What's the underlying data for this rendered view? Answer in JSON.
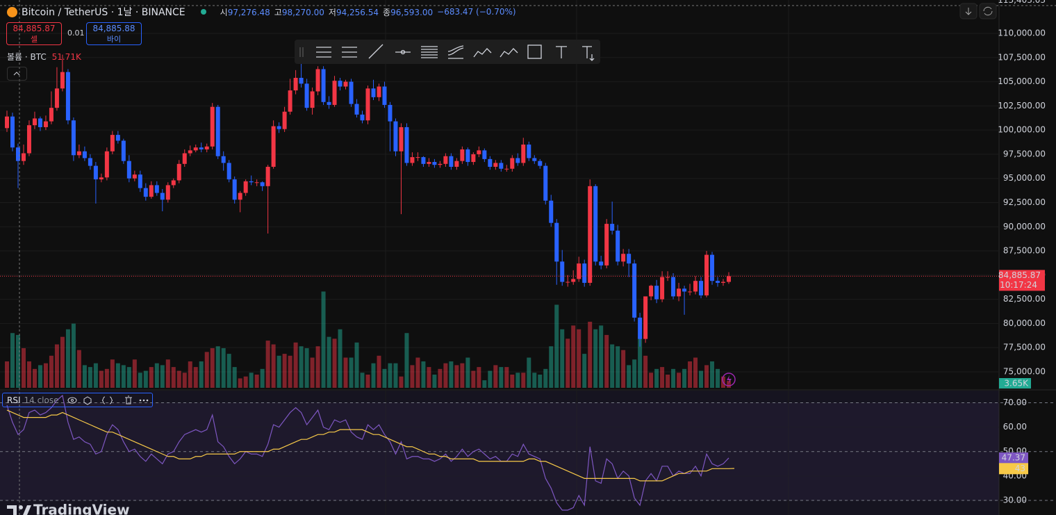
{
  "header": {
    "symbol": "Bitcoin / TetherUS · 1날 · BINANCE",
    "ohlc": [
      {
        "label": "시",
        "value": "97,276.48"
      },
      {
        "label": "고",
        "value": "98,270.00"
      },
      {
        "label": "저",
        "value": "94,256.54"
      },
      {
        "label": "종",
        "value": "96,593.00"
      }
    ],
    "change": "−683.47 (−0.70%)"
  },
  "order": {
    "sell_price": "84,885.87",
    "sell_label": "셀",
    "quantity": "0.01",
    "buy_price": "84,885.88",
    "buy_label": "바이"
  },
  "volume_legend": {
    "label": "볼륨 · BTC",
    "value": "51.71K"
  },
  "logo": "TradingView",
  "chart_data": {
    "type": "candlestick",
    "up_color": "#f23645",
    "down_color": "#2962ff",
    "ylim": [
      73200,
      113450
    ],
    "yticks": [
      {
        "value": 75000,
        "label": "75,000.00"
      },
      {
        "value": 77500,
        "label": "77,500.00"
      },
      {
        "value": 80000,
        "label": "80,000.00"
      },
      {
        "value": 82500,
        "label": "82,500.00"
      },
      {
        "value": 85000,
        "label": "85,000.00"
      },
      {
        "value": 87500,
        "label": "87,500.00"
      },
      {
        "value": 90000,
        "label": "90,000.00"
      },
      {
        "value": 92500,
        "label": "92,500.00"
      },
      {
        "value": 95000,
        "label": "95,000.00"
      },
      {
        "value": 97500,
        "label": "97,500.00"
      },
      {
        "value": 100000,
        "label": "100,000.00"
      },
      {
        "value": 102500,
        "label": "102,500.00"
      },
      {
        "value": 105000,
        "label": "105,000.00"
      },
      {
        "value": 107500,
        "label": "107,500.00"
      },
      {
        "value": 110000,
        "label": "110,000.00"
      }
    ],
    "top_label": {
      "value": 113403.03,
      "label": "113,403.03"
    },
    "last_price": {
      "value": 84885.87,
      "label": "84,885.87",
      "countdown": "10:17:24"
    },
    "open": [
      100200,
      101400,
      98200,
      96800,
      97600,
      100500,
      101200,
      100300,
      100900,
      102300,
      104300,
      106000,
      101000,
      97400,
      97800,
      97100,
      96300,
      94900,
      95100,
      97800,
      99500,
      98900,
      96800,
      95000,
      95400,
      94000,
      93100,
      94300,
      93500,
      92800,
      94300,
      94800,
      96500,
      97600,
      97900,
      98200,
      98000,
      98300,
      102400,
      97300,
      96600,
      94900,
      92800,
      93500,
      94700,
      94600,
      94600,
      94200,
      96200,
      100400,
      100100,
      101900,
      104100,
      105400,
      104800,
      102300,
      104000,
      106300,
      102900,
      102600,
      105100,
      104500,
      105000,
      102700,
      101600,
      101000,
      104300,
      103400,
      104500,
      102600,
      100900,
      97800,
      100300,
      96600,
      97200,
      97200,
      96500,
      96700,
      96400,
      96500,
      97300,
      96200,
      96800,
      98000,
      96700,
      97500,
      97900,
      97000,
      96200,
      96600,
      96000,
      96000,
      97100,
      96600,
      98500,
      97100,
      96800,
      96300,
      92700,
      90400,
      86400,
      84300,
      84300,
      84600,
      86200,
      84200,
      94200,
      86400,
      86000,
      90300,
      89600,
      86400,
      87200,
      86200,
      80600,
      78400,
      82800,
      83900,
      82500,
      84800,
      84800,
      82800,
      83600,
      83300,
      83300,
      84400,
      82900,
      87100,
      84400,
      84200,
      84300
    ],
    "high": [
      102000,
      101800,
      98600,
      98500,
      101000,
      101900,
      101400,
      101500,
      104000,
      106500,
      107800,
      106300,
      101300,
      98500,
      98300,
      97500,
      96700,
      95500,
      98200,
      99900,
      99900,
      99100,
      97400,
      95800,
      95800,
      94500,
      94700,
      94700,
      93900,
      94600,
      95000,
      96900,
      98000,
      98400,
      98500,
      98700,
      98600,
      102800,
      102600,
      97800,
      96900,
      95200,
      93700,
      94900,
      95300,
      94900,
      94700,
      96400,
      101000,
      100800,
      102400,
      105300,
      106200,
      107700,
      105300,
      104400,
      106600,
      106600,
      103500,
      105600,
      105400,
      105200,
      105300,
      103200,
      102000,
      104600,
      105200,
      104800,
      105000,
      102900,
      101200,
      100700,
      100700,
      97700,
      97700,
      97300,
      97100,
      97000,
      96800,
      97600,
      97600,
      97100,
      98300,
      98200,
      97700,
      98300,
      98100,
      97300,
      96900,
      96900,
      96400,
      97400,
      97600,
      99200,
      98800,
      97400,
      97000,
      96600,
      93300,
      90800,
      87600,
      85000,
      85500,
      86900,
      86600,
      94900,
      94400,
      87000,
      90800,
      92600,
      90200,
      87700,
      87700,
      86600,
      81100,
      82400,
      84000,
      84500,
      85400,
      85400,
      85200,
      84200,
      83900,
      84100,
      84900,
      84800,
      87500,
      87400,
      84800,
      84600,
      85300
    ],
    "low": [
      99800,
      97800,
      94000,
      96400,
      97300,
      100100,
      99900,
      100000,
      100600,
      102000,
      104000,
      100600,
      96800,
      97100,
      96800,
      95900,
      92400,
      94600,
      94800,
      97500,
      98600,
      96500,
      94600,
      94700,
      93600,
      92700,
      92900,
      93200,
      91600,
      92500,
      94000,
      94500,
      96200,
      97300,
      97700,
      97700,
      97700,
      98000,
      97000,
      95800,
      94600,
      92400,
      91500,
      93200,
      94300,
      94200,
      93700,
      89300,
      96000,
      99700,
      99800,
      101600,
      103700,
      104400,
      102000,
      101600,
      103600,
      102600,
      102200,
      102400,
      104100,
      104200,
      102400,
      101300,
      100700,
      100600,
      103100,
      103000,
      102300,
      97800,
      97300,
      91300,
      96300,
      96300,
      96800,
      96200,
      96200,
      96100,
      96100,
      96200,
      95900,
      95900,
      96500,
      96300,
      96400,
      97200,
      96700,
      95900,
      95900,
      95700,
      95700,
      95700,
      96300,
      96300,
      96800,
      96500,
      96000,
      92300,
      90000,
      84000,
      83900,
      83800,
      84000,
      84300,
      83800,
      83900,
      86000,
      85600,
      85700,
      89200,
      86000,
      85900,
      84800,
      80200,
      77600,
      78000,
      82400,
      82100,
      82200,
      84400,
      82500,
      82300,
      80900,
      82900,
      83000,
      82600,
      82700,
      84000,
      83800,
      83900,
      84100
    ],
    "close": [
      101400,
      98200,
      96800,
      97600,
      100500,
      101200,
      100300,
      100900,
      102300,
      104300,
      106000,
      101000,
      97400,
      97800,
      97100,
      96300,
      94900,
      95100,
      97800,
      99500,
      98900,
      96800,
      95000,
      95400,
      94000,
      93100,
      94300,
      93500,
      92800,
      94300,
      94800,
      96500,
      97600,
      97900,
      98200,
      98000,
      98300,
      102400,
      97300,
      96600,
      94900,
      92800,
      93500,
      94700,
      94600,
      94600,
      94200,
      96200,
      100400,
      100100,
      101900,
      104100,
      105400,
      104800,
      102300,
      104000,
      106300,
      102900,
      102600,
      105100,
      104500,
      105000,
      102700,
      101600,
      101000,
      104300,
      103400,
      104500,
      102600,
      100900,
      97800,
      100300,
      96600,
      97200,
      97200,
      96500,
      96700,
      96400,
      96500,
      97300,
      96200,
      96800,
      98000,
      96700,
      97500,
      97900,
      97000,
      96200,
      96600,
      96000,
      96000,
      97100,
      96600,
      98500,
      97100,
      96800,
      96300,
      92700,
      90400,
      86400,
      84300,
      84300,
      84600,
      86200,
      84200,
      94200,
      86400,
      86000,
      90300,
      89600,
      86400,
      87200,
      86200,
      80600,
      78400,
      82800,
      83900,
      82500,
      84800,
      84800,
      82800,
      83600,
      83300,
      83300,
      84400,
      82900,
      87100,
      84400,
      84200,
      84300,
      84885.87
    ],
    "volume": [
      14000,
      29000,
      28000,
      21000,
      14000,
      10000,
      12000,
      13000,
      17000,
      23000,
      27000,
      31000,
      34000,
      20000,
      12000,
      11000,
      13000,
      9000,
      10000,
      15000,
      13000,
      12000,
      11000,
      15000,
      8000,
      9000,
      11000,
      13000,
      12000,
      15000,
      11000,
      9000,
      8000,
      14000,
      11000,
      14000,
      19000,
      21000,
      22000,
      21000,
      18000,
      11000,
      5000,
      6000,
      8000,
      7000,
      10000,
      25000,
      23000,
      17000,
      18000,
      17000,
      24000,
      22000,
      21000,
      16000,
      22000,
      51000,
      27000,
      26000,
      31000,
      16000,
      16000,
      24000,
      8000,
      7000,
      13000,
      17000,
      10000,
      13000,
      13000,
      6000,
      29000,
      12000,
      16000,
      14000,
      11000,
      7000,
      10000,
      13000,
      14000,
      12000,
      13000,
      16000,
      9000,
      11000,
      4000,
      9000,
      12000,
      11000,
      11000,
      7000,
      8000,
      8000,
      16000,
      8000,
      7000,
      10000,
      22000,
      44000,
      31000,
      26000,
      33000,
      31000,
      18000,
      35000,
      31000,
      33000,
      28000,
      23000,
      22000,
      20000,
      12000,
      15000,
      27000,
      17000,
      8000,
      10000,
      11000,
      7000,
      10000,
      8000,
      10000,
      14000,
      16000,
      9000,
      12000,
      14000,
      10000,
      6000,
      3650
    ],
    "volume_ylim": [
      0,
      60000
    ],
    "volume_last": {
      "value": 3650,
      "label": "3.65K"
    },
    "rsi": {
      "label": "RSI",
      "params": "14 close",
      "color": "#7e57c2",
      "ma_color": "#f7c948",
      "ylim": [
        24,
        75
      ],
      "yticks": [
        {
          "value": 30,
          "label": "30.00"
        },
        {
          "value": 40,
          "label": "40.00"
        },
        {
          "value": 50,
          "label": "50.00"
        },
        {
          "value": 60,
          "label": "60.00"
        },
        {
          "value": 70,
          "label": "70.00"
        }
      ],
      "band": [
        30,
        70
      ],
      "levels": [
        30,
        50,
        70
      ],
      "values": [
        69,
        62,
        57,
        59,
        66,
        67,
        65,
        66,
        68,
        71,
        73,
        62,
        55,
        56,
        54,
        53,
        49,
        50,
        57,
        61,
        59,
        54,
        50,
        51,
        48,
        46,
        49,
        47,
        45,
        49,
        50,
        54,
        57,
        58,
        59,
        58,
        59,
        65,
        54,
        52,
        48,
        45,
        47,
        50,
        49,
        49,
        48,
        53,
        61,
        60,
        63,
        66,
        68,
        66,
        61,
        64,
        67,
        60,
        59,
        63,
        62,
        63,
        58,
        56,
        55,
        61,
        59,
        61,
        57,
        54,
        49,
        54,
        47,
        48,
        48,
        47,
        47,
        46,
        47,
        49,
        46,
        48,
        51,
        48,
        50,
        51,
        49,
        47,
        48,
        46,
        46,
        49,
        48,
        53,
        49,
        48,
        47,
        39,
        35,
        29,
        26,
        26,
        27,
        32,
        28,
        52,
        38,
        37,
        47,
        45,
        39,
        42,
        40,
        31,
        28,
        38,
        41,
        38,
        44,
        44,
        40,
        42,
        41,
        41,
        44,
        40,
        49,
        45,
        44,
        45,
        47.37
      ],
      "ma_values": [
        67,
        66,
        65,
        64,
        64,
        64,
        64,
        64,
        65,
        65,
        66,
        65,
        64,
        63,
        62,
        61,
        60,
        59,
        58,
        58,
        57,
        56,
        55,
        54,
        53,
        52,
        51,
        50,
        49,
        48,
        48,
        47,
        47,
        47,
        48,
        48,
        49,
        49,
        49,
        49,
        49,
        49,
        50,
        50,
        50,
        50,
        50,
        50,
        51,
        51,
        52,
        53,
        54,
        55,
        55,
        56,
        57,
        57,
        58,
        58,
        59,
        59,
        59,
        59,
        59,
        58,
        57,
        57,
        56,
        55,
        54,
        53,
        52,
        52,
        51,
        50,
        49,
        49,
        48,
        48,
        47,
        47,
        47,
        47,
        47,
        46,
        46,
        46,
        46,
        46,
        46,
        46,
        46,
        46,
        47,
        47,
        46,
        46,
        45,
        44,
        43,
        42,
        41,
        40,
        39,
        39,
        39,
        39,
        39,
        39,
        39,
        39,
        39,
        39,
        38,
        38,
        38,
        38,
        38,
        39,
        40,
        41,
        41,
        42,
        42,
        42,
        42,
        43,
        43,
        43,
        43,
        43.09
      ]
    }
  }
}
